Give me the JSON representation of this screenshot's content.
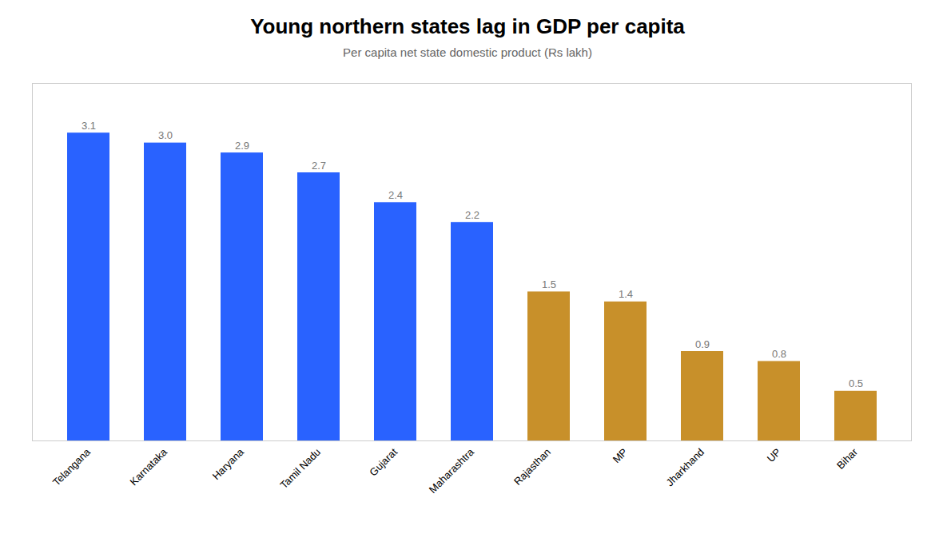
{
  "chart_data": {
    "type": "bar",
    "title": "Young northern states lag in GDP per capita",
    "subtitle": "Per capita net state domestic product (Rs lakh)",
    "categories": [
      "Telangana",
      "Karnataka",
      "Haryana",
      "Tamil Nadu",
      "Gujarat",
      "Maharashtra",
      "Rajasthan",
      "MP",
      "Jharkhand",
      "UP",
      "Bihar"
    ],
    "values": [
      3.1,
      3.0,
      2.9,
      2.7,
      2.4,
      2.2,
      1.5,
      1.4,
      0.9,
      0.8,
      0.5
    ],
    "value_labels": [
      "3.1",
      "3.0",
      "2.9",
      "2.7",
      "2.4",
      "2.2",
      "1.5",
      "1.4",
      "0.9",
      "0.8",
      "0.5"
    ],
    "colors": [
      "#2962FF",
      "#2962FF",
      "#2962FF",
      "#2962FF",
      "#2962FF",
      "#2962FF",
      "#C8902A",
      "#C8902A",
      "#C8902A",
      "#C8902A",
      "#C8902A"
    ],
    "ylim": [
      0,
      3.6
    ],
    "data_labels": true,
    "tick_labels": "x",
    "grid": false
  }
}
